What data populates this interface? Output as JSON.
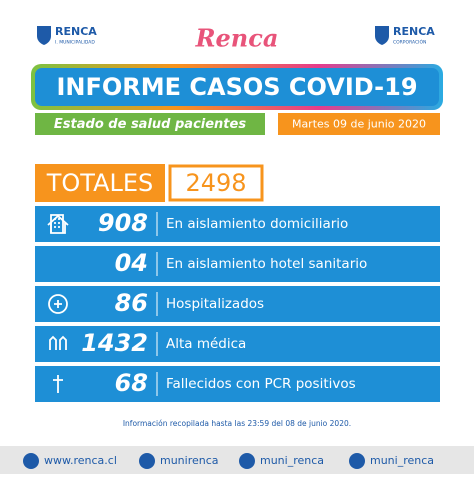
{
  "logos": {
    "left": {
      "name": "RENCA",
      "sub": "I. MUNICIPALIDAD"
    },
    "center": "Renca",
    "right": {
      "name": "RENCA",
      "sub": "CORPORACIÓN"
    }
  },
  "header": {
    "title": "INFORME CASOS COVID-19",
    "subtitle": "Estado de salud pacientes",
    "date": "Martes 09 de junio 2020"
  },
  "totals": {
    "label": "TOTALES",
    "value": "2498"
  },
  "rows": [
    {
      "value": "908",
      "label": "En aislamiento domiciliario"
    },
    {
      "value": "04",
      "label": "En aislamiento hotel sanitario"
    },
    {
      "value": "86",
      "label": "Hospitalizados"
    },
    {
      "value": "1432",
      "label": "Alta médica"
    },
    {
      "value": "68",
      "label": "Fallecidos con PCR positivos"
    }
  ],
  "note": "Información recopilada hasta las 23:59 del 08 de junio 2020.",
  "footer": [
    "www.renca.cl",
    "munirenca",
    "muni_renca",
    "muni_renca"
  ]
}
